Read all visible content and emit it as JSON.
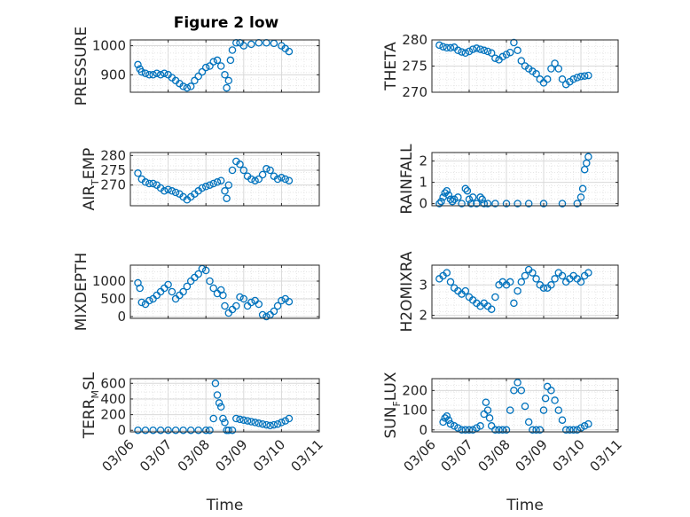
{
  "figure": {
    "title": "Figure 2 low",
    "x_axis_label": "Time",
    "x_tick_labels": [
      "03/06",
      "03/07",
      "03/08",
      "03/09",
      "03/10",
      "03/11"
    ],
    "marker_color": "#0072bd"
  },
  "chart_data": [
    {
      "type": "scatter",
      "name": "PRESSURE",
      "ylabel": "PRESSURE",
      "ylim": [
        840,
        1020
      ],
      "yticks": [
        900,
        1000
      ],
      "xlim": [
        0,
        5
      ],
      "grid": "minor",
      "x": [
        0.2,
        0.25,
        0.3,
        0.4,
        0.5,
        0.6,
        0.7,
        0.8,
        0.9,
        1.0,
        1.1,
        1.2,
        1.3,
        1.4,
        1.5,
        1.6,
        1.7,
        1.8,
        1.9,
        2.0,
        2.1,
        2.2,
        2.3,
        2.4,
        2.5,
        2.55,
        2.6,
        2.65,
        2.7,
        2.8,
        2.9,
        3.0,
        3.2,
        3.4,
        3.6,
        3.8,
        4.0,
        4.1,
        4.2
      ],
      "y": [
        935,
        920,
        910,
        905,
        900,
        900,
        905,
        900,
        905,
        900,
        890,
        880,
        870,
        860,
        855,
        860,
        880,
        895,
        910,
        925,
        930,
        945,
        950,
        930,
        900,
        855,
        880,
        950,
        985,
        1010,
        1010,
        1000,
        1005,
        1010,
        1010,
        1008,
        1000,
        990,
        980
      ]
    },
    {
      "type": "scatter",
      "name": "THETA",
      "ylabel": "THETA",
      "ylim": [
        270,
        280
      ],
      "yticks": [
        270,
        275,
        280
      ],
      "xlim": [
        0,
        5
      ],
      "grid": "minor",
      "x": [
        0.2,
        0.3,
        0.4,
        0.5,
        0.6,
        0.7,
        0.8,
        0.9,
        1.0,
        1.1,
        1.2,
        1.3,
        1.4,
        1.5,
        1.6,
        1.7,
        1.8,
        1.9,
        2.0,
        2.1,
        2.2,
        2.3,
        2.4,
        2.5,
        2.6,
        2.7,
        2.8,
        2.9,
        3.0,
        3.1,
        3.2,
        3.3,
        3.4,
        3.5,
        3.6,
        3.7,
        3.8,
        3.9,
        4.0,
        4.1,
        4.2
      ],
      "y": [
        279,
        278.7,
        278.5,
        278.5,
        278.6,
        278,
        277.7,
        277.5,
        277.8,
        278.2,
        278.4,
        278.2,
        278,
        277.8,
        277.5,
        276.5,
        276.2,
        276.8,
        277.2,
        277.6,
        279.5,
        278,
        276,
        275,
        274.5,
        274,
        273.5,
        272.5,
        271.8,
        272.5,
        274.5,
        275.5,
        274.5,
        272.5,
        271.5,
        272,
        272.5,
        272.8,
        273,
        273.1,
        273.2
      ]
    },
    {
      "type": "scatter",
      "name": "AIR_TEMP",
      "ylabel": "AIR_TEMP",
      "ylim": [
        263,
        281
      ],
      "yticks": [
        270,
        275,
        280
      ],
      "xlim": [
        0,
        5
      ],
      "grid": "minor",
      "x": [
        0.2,
        0.3,
        0.4,
        0.5,
        0.6,
        0.7,
        0.8,
        0.9,
        1.0,
        1.1,
        1.2,
        1.3,
        1.4,
        1.5,
        1.6,
        1.7,
        1.8,
        1.9,
        2.0,
        2.1,
        2.2,
        2.3,
        2.4,
        2.5,
        2.55,
        2.6,
        2.7,
        2.8,
        2.9,
        3.0,
        3.1,
        3.2,
        3.3,
        3.4,
        3.5,
        3.6,
        3.7,
        3.8,
        3.9,
        4.0,
        4.1,
        4.2
      ],
      "y": [
        274,
        272,
        271,
        270.5,
        270.5,
        270,
        269,
        268,
        268.5,
        268,
        267.5,
        267,
        266,
        265,
        266,
        267,
        268,
        269,
        269.5,
        270,
        270.5,
        271,
        271.5,
        268,
        265.5,
        270,
        275,
        278,
        277,
        275,
        273,
        272,
        271.5,
        272,
        273.5,
        275.5,
        275,
        273,
        272,
        272.5,
        272,
        271.5
      ]
    },
    {
      "type": "scatter",
      "name": "RAINFALL",
      "ylabel": "RAINFALL",
      "ylim": [
        -0.1,
        2.4
      ],
      "yticks": [
        0,
        1,
        2
      ],
      "xlim": [
        0,
        5
      ],
      "grid": "minor",
      "x": [
        0.2,
        0.25,
        0.3,
        0.35,
        0.4,
        0.45,
        0.5,
        0.55,
        0.6,
        0.7,
        0.8,
        0.9,
        0.95,
        1.0,
        1.05,
        1.1,
        1.2,
        1.3,
        1.35,
        1.4,
        1.5,
        1.7,
        2.0,
        2.3,
        2.6,
        3.0,
        3.5,
        3.9,
        4.0,
        4.05,
        4.1,
        4.15,
        4.2
      ],
      "y": [
        0,
        0.1,
        0.3,
        0.5,
        0.6,
        0.4,
        0.2,
        0.1,
        0.2,
        0.3,
        0,
        0.7,
        0.6,
        0.2,
        0,
        0.3,
        0,
        0.3,
        0.2,
        0,
        0,
        0,
        0,
        0,
        0,
        0,
        0,
        0,
        0.3,
        0.7,
        1.6,
        1.9,
        2.2
      ]
    },
    {
      "type": "scatter",
      "name": "MIXDEPTH",
      "ylabel": "MIXDEPTH",
      "ylim": [
        -50,
        1450
      ],
      "yticks": [
        0,
        500,
        1000
      ],
      "xlim": [
        0,
        5
      ],
      "grid": "minor",
      "x": [
        0.2,
        0.25,
        0.3,
        0.4,
        0.5,
        0.6,
        0.7,
        0.8,
        0.9,
        1.0,
        1.1,
        1.2,
        1.3,
        1.4,
        1.5,
        1.6,
        1.7,
        1.8,
        1.9,
        2.0,
        2.1,
        2.2,
        2.3,
        2.4,
        2.45,
        2.5,
        2.6,
        2.7,
        2.8,
        2.9,
        3.0,
        3.1,
        3.2,
        3.3,
        3.4,
        3.5,
        3.6,
        3.7,
        3.8,
        3.9,
        4.0,
        4.1,
        4.2
      ],
      "y": [
        950,
        800,
        400,
        350,
        450,
        500,
        600,
        700,
        800,
        900,
        700,
        500,
        600,
        700,
        850,
        1000,
        1100,
        1200,
        1350,
        1300,
        1000,
        800,
        650,
        750,
        600,
        300,
        100,
        200,
        300,
        550,
        500,
        300,
        400,
        450,
        350,
        50,
        0,
        50,
        150,
        300,
        450,
        500,
        420
      ]
    },
    {
      "type": "scatter",
      "name": "H2OMIXRA",
      "ylabel": "H2OMIXRA",
      "ylim": [
        1.9,
        3.65
      ],
      "yticks": [
        2,
        3
      ],
      "xlim": [
        0,
        5
      ],
      "grid": "minor",
      "x": [
        0.2,
        0.3,
        0.4,
        0.5,
        0.6,
        0.7,
        0.8,
        0.9,
        1.0,
        1.1,
        1.2,
        1.3,
        1.4,
        1.5,
        1.6,
        1.7,
        1.8,
        1.9,
        2.0,
        2.1,
        2.2,
        2.3,
        2.4,
        2.5,
        2.6,
        2.7,
        2.8,
        2.9,
        3.0,
        3.1,
        3.2,
        3.3,
        3.4,
        3.5,
        3.6,
        3.7,
        3.8,
        3.9,
        4.0,
        4.1,
        4.2
      ],
      "y": [
        3.2,
        3.3,
        3.4,
        3.1,
        2.9,
        2.8,
        2.7,
        2.8,
        2.6,
        2.5,
        2.4,
        2.3,
        2.4,
        2.3,
        2.2,
        2.6,
        3.0,
        3.1,
        3.0,
        3.1,
        2.4,
        2.8,
        3.1,
        3.3,
        3.5,
        3.4,
        3.2,
        3.0,
        2.9,
        2.9,
        3.0,
        3.2,
        3.4,
        3.3,
        3.1,
        3.2,
        3.3,
        3.2,
        3.1,
        3.3,
        3.4
      ]
    },
    {
      "type": "scatter",
      "name": "TERR_MSL",
      "ylabel": "TERR_MSL",
      "ylim": [
        -20,
        660
      ],
      "yticks": [
        0,
        200,
        400,
        600
      ],
      "xlim": [
        0,
        5
      ],
      "grid": "minor",
      "x": [
        0.2,
        0.4,
        0.6,
        0.8,
        1.0,
        1.2,
        1.4,
        1.6,
        1.8,
        2.0,
        2.1,
        2.2,
        2.25,
        2.3,
        2.35,
        2.4,
        2.45,
        2.5,
        2.55,
        2.6,
        2.7,
        2.8,
        2.9,
        3.0,
        3.1,
        3.2,
        3.3,
        3.4,
        3.5,
        3.6,
        3.7,
        3.8,
        3.9,
        4.0,
        4.1,
        4.2
      ],
      "y": [
        0,
        0,
        0,
        0,
        0,
        0,
        0,
        0,
        0,
        0,
        0,
        150,
        600,
        450,
        350,
        300,
        150,
        100,
        0,
        0,
        0,
        150,
        140,
        130,
        120,
        110,
        100,
        90,
        80,
        70,
        60,
        70,
        80,
        100,
        120,
        150
      ]
    },
    {
      "type": "scatter",
      "name": "SUN_FLUX",
      "ylabel": "SUN_FLUX",
      "ylim": [
        -10,
        260
      ],
      "yticks": [
        0,
        100,
        200
      ],
      "xlim": [
        0,
        5
      ],
      "grid": "minor",
      "x": [
        0.3,
        0.35,
        0.4,
        0.45,
        0.5,
        0.6,
        0.7,
        0.8,
        0.9,
        1.0,
        1.1,
        1.2,
        1.3,
        1.4,
        1.45,
        1.5,
        1.55,
        1.6,
        1.7,
        1.8,
        1.9,
        2.0,
        2.1,
        2.2,
        2.3,
        2.4,
        2.5,
        2.6,
        2.7,
        2.8,
        2.9,
        3.0,
        3.05,
        3.1,
        3.2,
        3.3,
        3.4,
        3.5,
        3.6,
        3.7,
        3.8,
        3.9,
        4.0,
        4.1,
        4.2
      ],
      "y": [
        40,
        60,
        70,
        50,
        30,
        20,
        10,
        0,
        0,
        0,
        0,
        10,
        20,
        80,
        140,
        100,
        60,
        20,
        0,
        0,
        0,
        0,
        100,
        200,
        240,
        200,
        120,
        40,
        0,
        0,
        0,
        100,
        160,
        220,
        200,
        150,
        100,
        50,
        0,
        0,
        0,
        0,
        10,
        20,
        30
      ]
    }
  ],
  "panel_labels": {
    "PRESSURE": "PRESSURE",
    "THETA": "THETA",
    "AIR_TEMP": {
      "main": "AIR",
      "sub": "T",
      "rest": "EMP"
    },
    "RAINFALL": "RAINFALL",
    "MIXDEPTH": "MIXDEPTH",
    "H2OMIXRA": "H2OMIXRA",
    "TERR_MSL": {
      "main": "TERR",
      "sub": "M",
      "rest": "SL"
    },
    "SUN_FLUX": {
      "main": "SUN",
      "sub": "F",
      "rest": "LUX"
    }
  }
}
